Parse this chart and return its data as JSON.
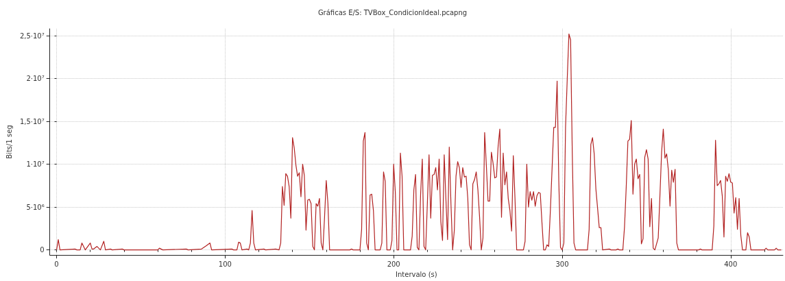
{
  "chart_data": {
    "type": "line",
    "title": "Gráficas E/S: TVBox_CondicionIdeal.pcapng",
    "xlabel": "Intervalo (s)",
    "ylabel": "Bits/1 seg",
    "x": [
      0,
      1,
      2,
      11,
      12,
      14,
      15,
      17,
      20,
      21,
      22,
      24,
      26,
      28,
      29,
      32,
      33,
      39,
      40,
      60,
      61,
      63,
      77,
      78,
      86,
      89,
      91,
      92,
      104,
      105,
      107,
      108,
      109,
      110,
      113,
      114,
      115,
      116,
      117,
      118,
      123,
      124,
      130,
      132,
      133,
      134,
      135,
      136,
      137,
      138,
      139,
      140,
      141,
      142,
      143,
      144,
      145,
      146,
      147,
      148,
      149,
      150,
      151,
      152,
      153,
      154,
      155,
      156,
      157,
      158,
      159,
      160,
      161,
      162,
      174,
      175,
      176,
      180,
      181,
      182,
      183,
      184,
      185,
      186,
      187,
      188,
      189,
      192,
      193,
      194,
      195,
      196,
      198,
      199,
      200,
      201,
      202,
      203,
      204,
      205,
      206,
      210,
      211,
      212,
      213,
      214,
      215,
      216,
      217,
      218,
      219,
      220,
      221,
      222,
      223,
      224,
      225,
      226,
      227,
      228,
      229,
      230,
      231,
      232,
      233,
      234,
      235,
      236,
      237,
      238,
      239,
      240,
      241,
      242,
      243,
      244,
      245,
      246,
      247,
      248,
      249,
      250,
      251,
      252,
      253,
      254,
      255,
      256,
      257,
      258,
      259,
      260,
      261,
      262,
      263,
      264,
      265,
      266,
      267,
      268,
      269,
      270,
      271,
      272,
      273,
      277,
      278,
      279,
      280,
      281,
      282,
      283,
      284,
      285,
      286,
      287,
      288,
      289,
      290,
      291,
      292,
      293,
      295,
      296,
      297,
      298,
      299,
      300,
      301,
      302,
      303,
      304,
      305,
      306,
      307,
      308,
      315,
      316,
      317,
      318,
      319,
      320,
      321,
      322,
      323,
      324,
      328,
      329,
      332,
      333,
      334,
      336,
      337,
      338,
      339,
      340,
      341,
      342,
      343,
      344,
      345,
      346,
      347,
      348,
      349,
      350,
      351,
      352,
      353,
      354,
      355,
      357,
      358,
      359,
      360,
      361,
      362,
      363,
      364,
      365,
      366,
      367,
      368,
      369,
      381,
      382,
      383,
      389,
      390,
      391,
      392,
      393,
      394,
      395,
      396,
      397,
      398,
      399,
      400,
      401,
      402,
      403,
      404,
      405,
      406,
      407,
      409,
      410,
      411,
      412,
      420,
      421,
      422,
      426,
      427,
      428,
      430
    ],
    "series": [
      {
        "color": "#b22222",
        "values": [
          0,
          1200000,
          0,
          100000,
          0,
          0,
          800000,
          0,
          800000,
          100000,
          100000,
          400000,
          0,
          1000000,
          0,
          100000,
          0,
          100000,
          0,
          0,
          200000,
          0,
          100000,
          0,
          100000,
          500000,
          800000,
          0,
          100000,
          0,
          0,
          900000,
          800000,
          0,
          100000,
          0,
          800000,
          4600000,
          800000,
          0,
          100000,
          0,
          100000,
          0,
          800000,
          7400000,
          5200000,
          8900000,
          8600000,
          7400000,
          3700000,
          13100000,
          11900000,
          9900000,
          8600000,
          9000000,
          6200000,
          10000000,
          8700000,
          2300000,
          5800000,
          5900000,
          5400000,
          400000,
          0,
          5400000,
          5100000,
          6000000,
          800000,
          0,
          3800000,
          8100000,
          5400000,
          0,
          0,
          100000,
          0,
          0,
          2400000,
          12700000,
          13700000,
          800000,
          0,
          6400000,
          6500000,
          4600000,
          0,
          0,
          800000,
          9100000,
          8000000,
          0,
          0,
          1100000,
          10000000,
          6700000,
          0,
          0,
          11300000,
          8600000,
          0,
          0,
          1600000,
          7000000,
          8800000,
          300000,
          0,
          6500000,
          10600000,
          400000,
          0,
          5400000,
          11100000,
          3700000,
          8700000,
          8800000,
          9600000,
          7000000,
          10600000,
          3300000,
          1100000,
          11100000,
          6000000,
          1200000,
          12000000,
          5400000,
          0,
          2300000,
          8600000,
          10300000,
          9600000,
          7300000,
          9600000,
          8500000,
          8600000,
          6000000,
          600000,
          0,
          7700000,
          8200000,
          9100000,
          7000000,
          3800000,
          0,
          1400000,
          13700000,
          9900000,
          5700000,
          5700000,
          11400000,
          10100000,
          8400000,
          8500000,
          12100000,
          14100000,
          3800000,
          11300000,
          7600000,
          9100000,
          6000000,
          4600000,
          2200000,
          11000000,
          6000000,
          0,
          0,
          1000000,
          10000000,
          5000000,
          6800000,
          5800000,
          6800000,
          5100000,
          6300000,
          6700000,
          6600000,
          3200000,
          0,
          0,
          600000,
          400000,
          4600000,
          14300000,
          14300000,
          19700000,
          8000000,
          300000,
          0,
          800000,
          14300000,
          19900000,
          25200000,
          24500000,
          11200000,
          800000,
          0,
          0,
          2400000,
          12300000,
          13100000,
          11200000,
          7100000,
          4900000,
          2600000,
          2600000,
          0,
          100000,
          0,
          0,
          100000,
          0,
          0,
          2700000,
          7300000,
          12700000,
          12900000,
          15100000,
          6500000,
          10000000,
          10600000,
          8300000,
          8800000,
          700000,
          1300000,
          10800000,
          11700000,
          10600000,
          2700000,
          6000000,
          200000,
          0,
          1400000,
          6300000,
          11400000,
          14100000,
          10700000,
          11200000,
          9300000,
          5100000,
          9300000,
          7900000,
          9400000,
          800000,
          0,
          0,
          100000,
          0,
          0,
          2800000,
          12800000,
          7500000,
          7700000,
          8100000,
          6300000,
          1500000,
          8600000,
          8000000,
          8900000,
          7900000,
          7800000,
          4300000,
          6100000,
          2400000,
          6000000,
          1700000,
          0,
          0,
          2000000,
          1500000,
          0,
          0,
          200000,
          0,
          0,
          200000,
          0,
          0
        ]
      }
    ],
    "xlim": [
      -4,
      431
    ],
    "xticks": [
      0,
      {
        "value": 20,
        "label": null
      },
      {
        "value": 40,
        "label": null
      },
      {
        "value": 60,
        "label": null
      },
      {
        "value": 80,
        "label": null
      },
      100,
      {
        "value": 120,
        "label": null
      },
      {
        "value": 140,
        "label": null
      },
      {
        "value": 160,
        "label": null
      },
      {
        "value": 180,
        "label": null
      },
      200,
      {
        "value": 220,
        "label": null
      },
      {
        "value": 240,
        "label": null
      },
      {
        "value": 260,
        "label": null
      },
      {
        "value": 280,
        "label": null
      },
      300,
      {
        "value": 320,
        "label": null
      },
      {
        "value": 340,
        "label": null
      },
      {
        "value": 360,
        "label": null
      },
      {
        "value": 380,
        "label": null
      },
      400,
      {
        "value": 420,
        "label": null
      }
    ],
    "ylim": [
      -600000,
      25800000
    ],
    "yticks": [
      0,
      {
        "value": 5000000,
        "label": "5·10⁶"
      },
      {
        "value": 10000000,
        "label": "1·10⁷"
      },
      {
        "value": 15000000,
        "label": "1,5·10⁷"
      },
      {
        "value": 20000000,
        "label": "2·10⁷"
      },
      {
        "value": 25000000,
        "label": "2,5·10⁷"
      }
    ],
    "grid": true,
    "marker": "none",
    "line_style": "solid"
  }
}
